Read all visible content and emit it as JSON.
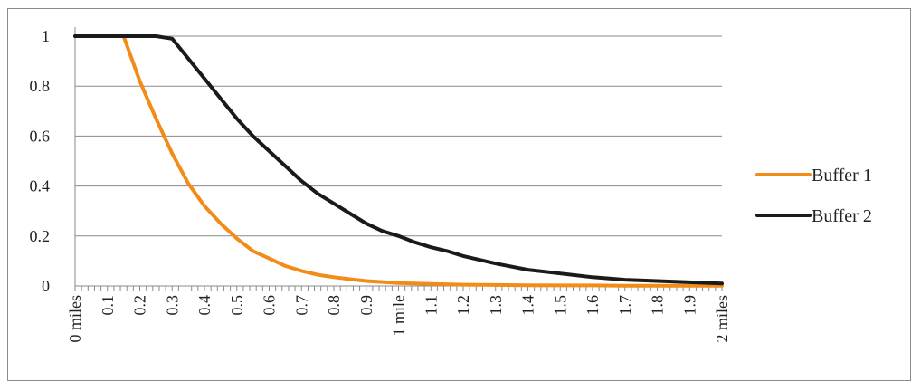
{
  "chart_data": {
    "type": "line",
    "title": "",
    "xlabel": "",
    "ylabel": "",
    "x_ticks": [
      "0 miles",
      "0.1",
      "0.2",
      "0.3",
      "0.4",
      "0.5",
      "0.6",
      "0.7",
      "0.8",
      "0.9",
      "1 mile",
      "1.1",
      "1.2",
      "1.3",
      "1.4",
      "1.5",
      "1.6",
      "1.7",
      "1.8",
      "1.9",
      "2 miles"
    ],
    "y_ticks": [
      "0",
      "0.2",
      "0.4",
      "0.6",
      "0.8",
      "1"
    ],
    "xlim": [
      0,
      2
    ],
    "ylim": [
      0,
      1
    ],
    "grid": "horizontal",
    "legend_position": "right",
    "series": [
      {
        "name": "Buffer 1",
        "color": "#f28c18",
        "x": [
          0,
          0.05,
          0.1,
          0.15,
          0.2,
          0.25,
          0.3,
          0.35,
          0.4,
          0.45,
          0.5,
          0.55,
          0.6,
          0.65,
          0.7,
          0.75,
          0.8,
          0.85,
          0.9,
          0.95,
          1.0,
          1.1,
          1.2,
          1.3,
          1.4,
          1.5,
          1.6,
          1.7,
          1.8,
          1.9,
          2.0
        ],
        "values": [
          1,
          1,
          1,
          1,
          0.82,
          0.67,
          0.53,
          0.41,
          0.32,
          0.25,
          0.19,
          0.14,
          0.11,
          0.08,
          0.06,
          0.045,
          0.035,
          0.027,
          0.02,
          0.016,
          0.012,
          0.008,
          0.005,
          0.004,
          0.003,
          0.002,
          0.002,
          0.001,
          0.001,
          0.001,
          0.001
        ]
      },
      {
        "name": "Buffer 2",
        "color": "#1a1a1a",
        "x": [
          0,
          0.05,
          0.1,
          0.15,
          0.2,
          0.25,
          0.3,
          0.35,
          0.4,
          0.45,
          0.5,
          0.55,
          0.6,
          0.65,
          0.7,
          0.75,
          0.8,
          0.85,
          0.9,
          0.95,
          1.0,
          1.05,
          1.1,
          1.15,
          1.2,
          1.3,
          1.4,
          1.5,
          1.6,
          1.7,
          1.8,
          1.9,
          2.0
        ],
        "values": [
          1,
          1,
          1,
          1,
          1,
          1,
          0.99,
          0.91,
          0.83,
          0.75,
          0.67,
          0.6,
          0.54,
          0.48,
          0.42,
          0.37,
          0.33,
          0.29,
          0.25,
          0.22,
          0.2,
          0.175,
          0.155,
          0.14,
          0.12,
          0.09,
          0.065,
          0.05,
          0.035,
          0.025,
          0.02,
          0.015,
          0.01
        ]
      }
    ]
  }
}
